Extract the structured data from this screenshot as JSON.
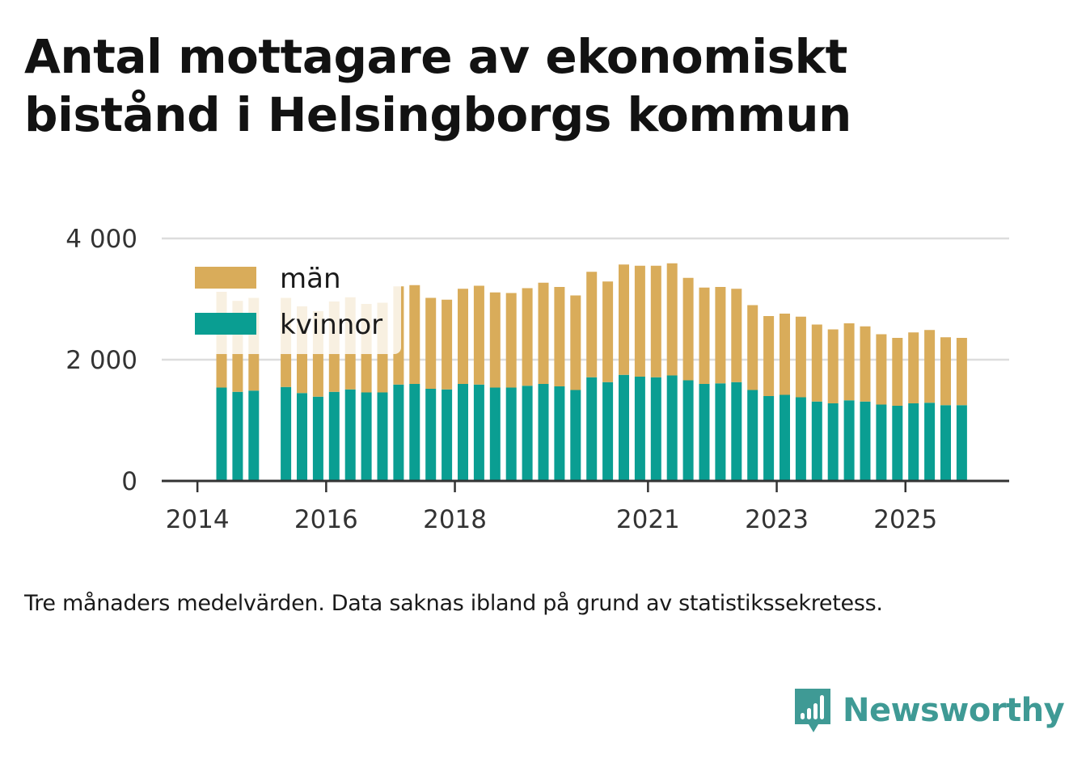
{
  "title": "Antal mottagare av ekonomiskt bistånd i Helsingborgs kommun",
  "note": "Tre månaders medelvärden. Data saknas ibland på grund av statistikssekretess.",
  "brand": {
    "name": "Newsworthy",
    "icon": "newsworthy-logo-icon",
    "color": "#3f9a95"
  },
  "colors": {
    "kvinnor": "#0a9e92",
    "man": "#d9ac5a",
    "grid": "#dddddd",
    "axis": "#333333"
  },
  "chart_data": {
    "type": "bar",
    "stacked": true,
    "ylim": [
      0,
      4000
    ],
    "y_ticks": [
      0,
      2000,
      4000
    ],
    "y_tick_labels": [
      "0",
      "2 000",
      "4 000"
    ],
    "x_tick_labels": [
      "2014",
      "2016",
      "2018",
      "2021",
      "2023",
      "2025"
    ],
    "grid": true,
    "legend_position": "top-left",
    "x": [
      "2014-Q2",
      "2014-Q3",
      "2014-Q4",
      "2015-Q1",
      "2015-Q2",
      "2015-Q3",
      "2015-Q4",
      "2016-Q1",
      "2016-Q2",
      "2016-Q3",
      "2016-Q4",
      "2017-Q1",
      "2017-Q2",
      "2017-Q3",
      "2017-Q4",
      "2018-Q1",
      "2018-Q2",
      "2018-Q3",
      "2018-Q4",
      "2019-Q1",
      "2019-Q2",
      "2019-Q3",
      "2019-Q4",
      "2020-Q1",
      "2020-Q2",
      "2020-Q3",
      "2020-Q4",
      "2021-Q1",
      "2021-Q2",
      "2021-Q3",
      "2021-Q4",
      "2022-Q1",
      "2022-Q2",
      "2022-Q3",
      "2022-Q4",
      "2023-Q1",
      "2023-Q2",
      "2023-Q3",
      "2023-Q4",
      "2024-Q1",
      "2024-Q2",
      "2024-Q3",
      "2024-Q4",
      "2025-Q1",
      "2025-Q2",
      "2025-Q3",
      "2025-Q4",
      "2026-Q1"
    ],
    "series": [
      {
        "name": "kvinnor",
        "values": [
          1540,
          1470,
          1490,
          null,
          1550,
          1450,
          1390,
          1470,
          1510,
          1460,
          1460,
          1590,
          1600,
          1520,
          1510,
          1600,
          1590,
          1540,
          1540,
          1570,
          1600,
          1560,
          1500,
          1710,
          1630,
          1750,
          1720,
          1710,
          1740,
          1660,
          1600,
          1610,
          1630,
          1500,
          1400,
          1420,
          1380,
          1310,
          1280,
          1330,
          1310,
          1260,
          1240,
          1280,
          1290,
          1250,
          1250,
          null
        ]
      },
      {
        "name": "män",
        "values": [
          1580,
          1500,
          1530,
          null,
          1470,
          1430,
          1410,
          1490,
          1520,
          1460,
          1480,
          1620,
          1630,
          1500,
          1480,
          1570,
          1630,
          1570,
          1560,
          1610,
          1670,
          1640,
          1560,
          1740,
          1660,
          1820,
          1830,
          1840,
          1850,
          1690,
          1590,
          1590,
          1540,
          1400,
          1320,
          1340,
          1330,
          1270,
          1220,
          1270,
          1240,
          1160,
          1120,
          1170,
          1200,
          1120,
          1110,
          null
        ]
      }
    ]
  }
}
